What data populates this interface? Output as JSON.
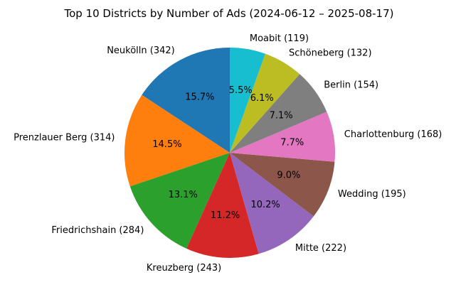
{
  "chart_data": {
    "type": "pie",
    "title": "Top 10 Districts by Number of Ads (2024-06-12 – 2025-08-17)",
    "start_angle_deg": 90,
    "direction": "counterclockwise",
    "slices": [
      {
        "label": "Neukölln (342)",
        "value": 342,
        "pct_label": "15.7%",
        "color": "#1f77b4"
      },
      {
        "label": "Prenzlauer Berg (314)",
        "value": 314,
        "pct_label": "14.5%",
        "color": "#ff7f0e"
      },
      {
        "label": "Friedrichshain (284)",
        "value": 284,
        "pct_label": "13.1%",
        "color": "#2ca02c"
      },
      {
        "label": "Kreuzberg (243)",
        "value": 243,
        "pct_label": "11.2%",
        "color": "#d62728"
      },
      {
        "label": "Mitte (222)",
        "value": 222,
        "pct_label": "10.2%",
        "color": "#9467bd"
      },
      {
        "label": "Wedding (195)",
        "value": 195,
        "pct_label": "9.0%",
        "color": "#8c564b"
      },
      {
        "label": "Charlottenburg (168)",
        "value": 168,
        "pct_label": "7.7%",
        "color": "#e377c2"
      },
      {
        "label": "Berlin (154)",
        "value": 154,
        "pct_label": "7.1%",
        "color": "#7f7f7f"
      },
      {
        "label": "Schöneberg (132)",
        "value": 132,
        "pct_label": "6.1%",
        "color": "#bcbd22"
      },
      {
        "label": "Moabit (119)",
        "value": 119,
        "pct_label": "5.5%",
        "color": "#17becf"
      }
    ]
  }
}
